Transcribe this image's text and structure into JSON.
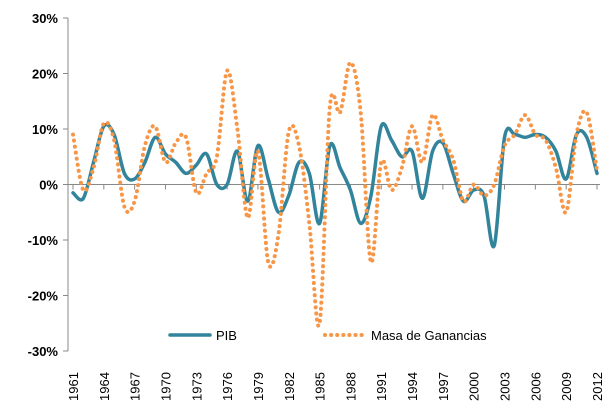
{
  "chart_data": {
    "type": "line",
    "x": [
      1961,
      1962,
      1963,
      1964,
      1965,
      1966,
      1967,
      1968,
      1969,
      1970,
      1971,
      1972,
      1973,
      1974,
      1975,
      1976,
      1977,
      1978,
      1979,
      1980,
      1981,
      1982,
      1983,
      1984,
      1985,
      1986,
      1987,
      1988,
      1989,
      1990,
      1991,
      1992,
      1993,
      1994,
      1995,
      1996,
      1997,
      1998,
      1999,
      2000,
      2001,
      2002,
      2003,
      2004,
      2005,
      2006,
      2007,
      2008,
      2009,
      2010,
      2011,
      2012
    ],
    "xlim": [
      1961,
      2012
    ],
    "xticks": [
      1961,
      1964,
      1967,
      1970,
      1973,
      1976,
      1979,
      1982,
      1985,
      1988,
      1991,
      1994,
      1997,
      2000,
      2003,
      2006,
      2009,
      2012
    ],
    "ylim": [
      -30,
      30
    ],
    "yticks": [
      {
        "value": -30,
        "label": "-30%"
      },
      {
        "value": -20,
        "label": "-20%"
      },
      {
        "value": -10,
        "label": "-10%"
      },
      {
        "value": 0,
        "label": "0%"
      },
      {
        "value": 10,
        "label": "10%"
      },
      {
        "value": 20,
        "label": "20%"
      },
      {
        "value": 30,
        "label": "30%"
      }
    ],
    "grid": false,
    "legend": "bottom",
    "series": [
      {
        "name": "PIB",
        "color": "#31849b",
        "style": "solid",
        "values": [
          -1.5,
          -2.5,
          4,
          10.5,
          9,
          2,
          1,
          4,
          8.5,
          5.5,
          4,
          2,
          3.5,
          5.5,
          0,
          0,
          6,
          -3,
          7,
          1,
          -5,
          -2,
          4,
          2,
          -7,
          7,
          3,
          -1,
          -7,
          -2,
          10.5,
          8,
          5,
          6,
          -2.5,
          6,
          7.5,
          2,
          -3,
          -1,
          -2,
          -11,
          8.5,
          9,
          8.5,
          9,
          8.5,
          6,
          1,
          9,
          8.5,
          2
        ]
      },
      {
        "name": "Masa de Ganancias",
        "color": "#f79646",
        "style": "dotted",
        "values": [
          9,
          -1,
          3,
          11,
          8,
          -4,
          -3,
          7,
          10.5,
          4,
          7.5,
          8.5,
          -1.5,
          2,
          5,
          20.5,
          10,
          -6,
          6,
          -14,
          -9,
          9.5,
          7,
          -7,
          -25,
          14,
          13,
          22,
          13,
          -14,
          4,
          -1,
          3,
          10.5,
          4,
          12.5,
          8,
          4.5,
          -3,
          0,
          -2,
          0,
          7,
          9,
          12.5,
          9,
          8,
          3,
          -5,
          9,
          13,
          2.5
        ]
      }
    ]
  }
}
